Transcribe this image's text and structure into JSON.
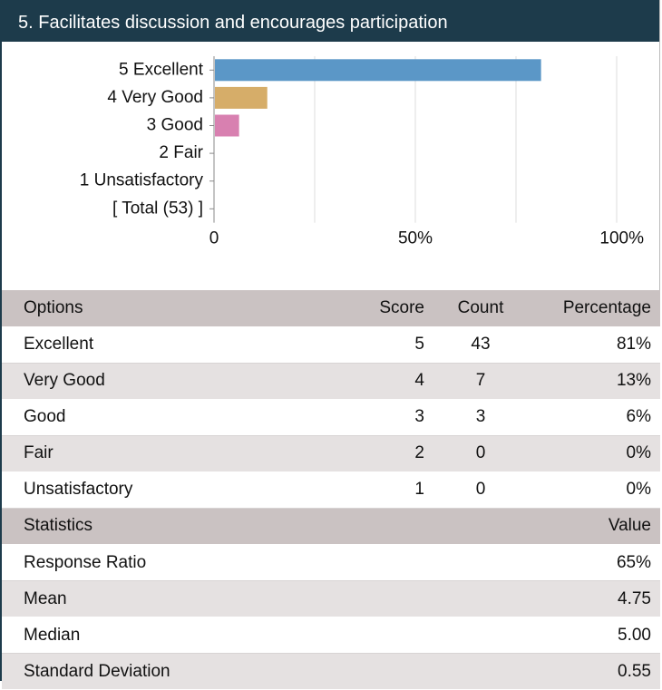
{
  "header": {
    "title": "5. Facilitates discussion and encourages participation"
  },
  "chart_data": {
    "type": "hbar",
    "categories": [
      "5 Excellent",
      "4 Very Good",
      "3 Good",
      "2 Fair",
      "1 Unsatisfactory",
      "[ Total (53) ]"
    ],
    "values": [
      81,
      13,
      6,
      0,
      0,
      null
    ],
    "colors": [
      "#5b97c7",
      "#d6ad69",
      "#d880b0",
      "#999999",
      "#999999",
      "#999999"
    ],
    "xlim": [
      0,
      100
    ],
    "xticks": [
      0,
      {
        "value": 50,
        "label": "50%"
      },
      {
        "value": 100,
        "label": "100%"
      }
    ],
    "grid_lines": [
      0,
      25,
      50,
      75,
      100
    ]
  },
  "table": {
    "header": [
      "Options",
      "Score",
      "Count",
      "Percentage"
    ],
    "rows": [
      [
        "Excellent",
        "5",
        "43",
        "81%"
      ],
      [
        "Very Good",
        "4",
        "7",
        "13%"
      ],
      [
        "Good",
        "3",
        "3",
        "6%"
      ],
      [
        "Fair",
        "2",
        "0",
        "0%"
      ],
      [
        "Unsatisfactory",
        "1",
        "0",
        "0%"
      ]
    ]
  },
  "statistics": {
    "header": [
      "Statistics",
      "Value"
    ],
    "rows": [
      [
        "Response Ratio",
        "65%"
      ],
      [
        "Mean",
        "4.75"
      ],
      [
        "Median",
        "5.00"
      ],
      [
        "Standard Deviation",
        "0.55"
      ]
    ]
  }
}
